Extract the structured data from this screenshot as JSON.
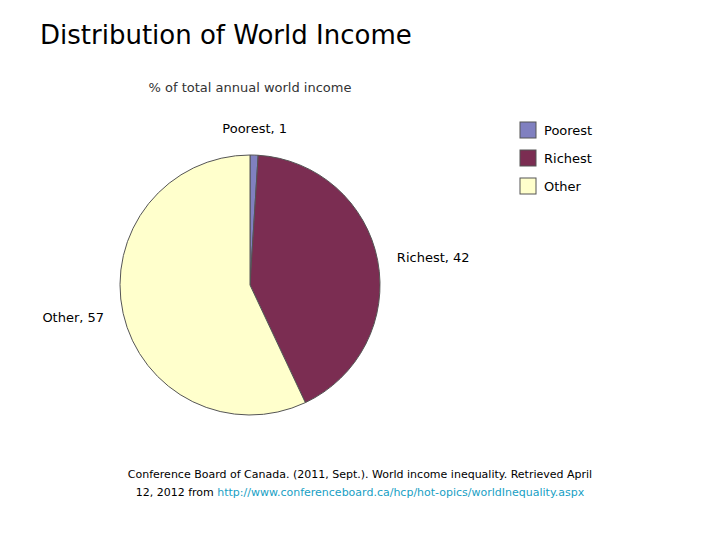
{
  "chart_data": {
    "type": "pie",
    "title": "Distribution of World Income",
    "subtitle": "% of total annual world income",
    "categories": [
      "Poorest",
      "Richest",
      "Other"
    ],
    "values": [
      1,
      42,
      57
    ],
    "value_labels": [
      "Poorest, 1",
      "Richest, 42",
      "Other, 57"
    ],
    "colors": [
      "#8080c0",
      "#7b2d52",
      "#ffffcc"
    ],
    "data_labels": true,
    "legend": "right",
    "annotations": [
      "Conference Board of Canada. (2011, Sept.). World income inequality. Retrieved April",
      "12, 2012 from ",
      "http://www.conferenceboard.ca/hcp/hot-opics/worldInequality.aspx"
    ]
  }
}
